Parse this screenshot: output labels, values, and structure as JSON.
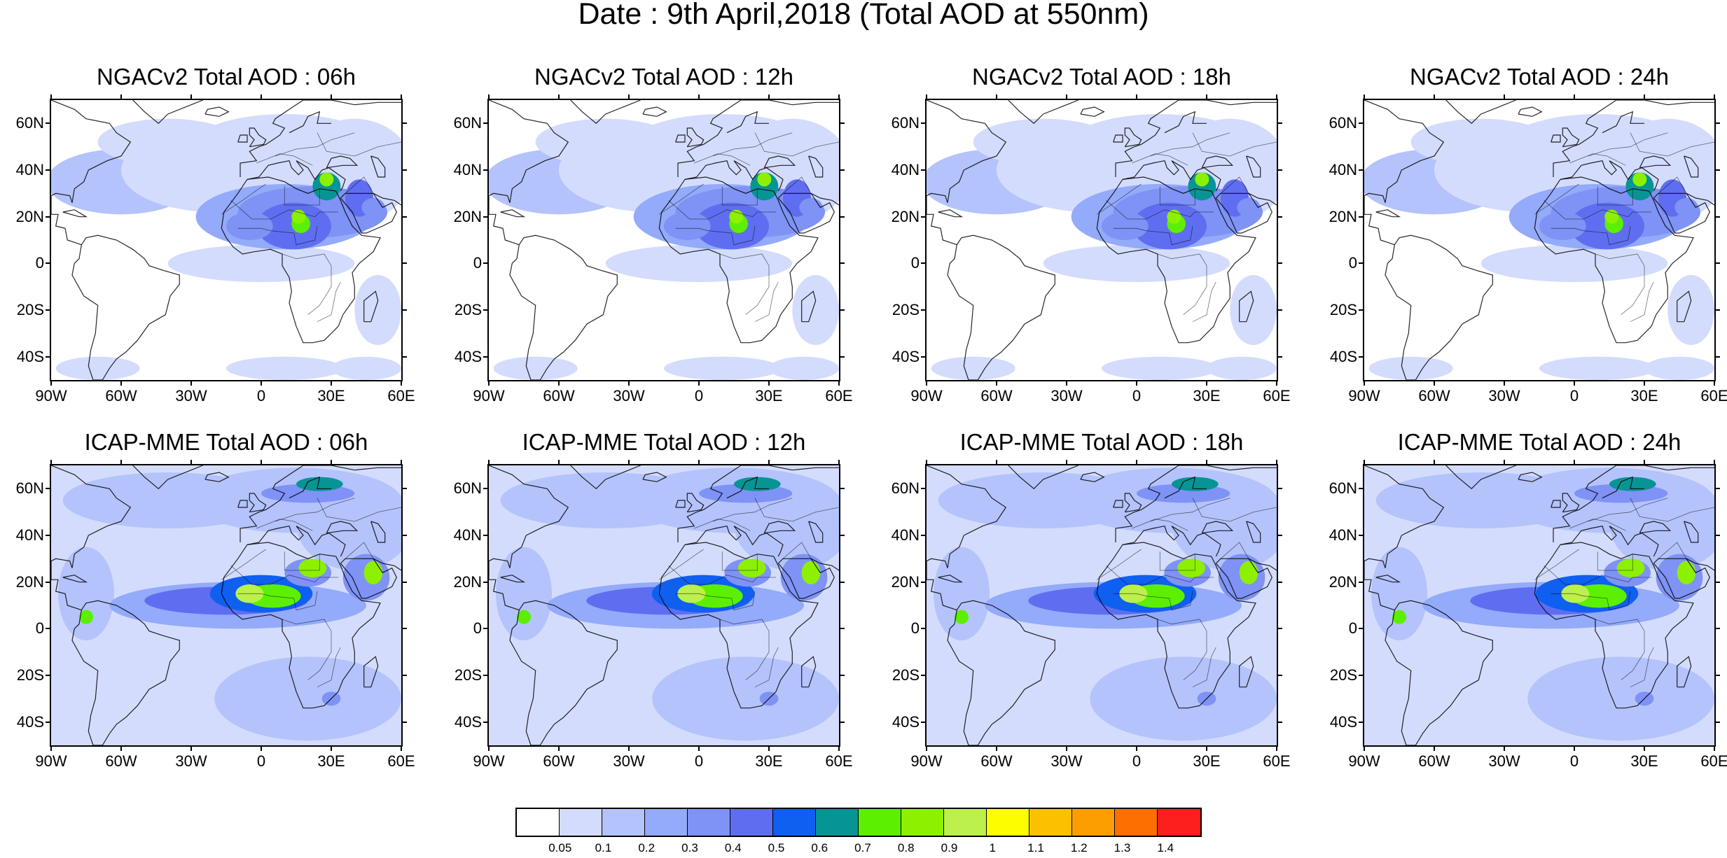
{
  "title": "Date : 9th April,2018 (Total AOD at 550nm)",
  "lat_ticks": [
    "60N",
    "40N",
    "20N",
    "0",
    "20S",
    "40S"
  ],
  "lon_ticks": [
    "90W",
    "60W",
    "30W",
    "0",
    "30E",
    "60E"
  ],
  "panels": [
    {
      "title": "NGACv2 Total AOD : 06h",
      "model": "NGACv2",
      "hour": "06h"
    },
    {
      "title": "NGACv2 Total AOD : 12h",
      "model": "NGACv2",
      "hour": "12h"
    },
    {
      "title": "NGACv2 Total AOD : 18h",
      "model": "NGACv2",
      "hour": "18h"
    },
    {
      "title": "NGACv2 Total AOD : 24h",
      "model": "NGACv2",
      "hour": "24h"
    },
    {
      "title": "ICAP-MME Total AOD : 06h",
      "model": "ICAP-MME",
      "hour": "06h"
    },
    {
      "title": "ICAP-MME Total AOD : 12h",
      "model": "ICAP-MME",
      "hour": "12h"
    },
    {
      "title": "ICAP-MME Total AOD : 18h",
      "model": "ICAP-MME",
      "hour": "18h"
    },
    {
      "title": "ICAP-MME Total AOD : 24h",
      "model": "ICAP-MME",
      "hour": "24h"
    }
  ],
  "colorbar": {
    "colors": [
      "#ffffff",
      "#d4dcfd",
      "#b4c3fb",
      "#94aafa",
      "#7f92f5",
      "#5f6ef0",
      "#0f5ff0",
      "#079494",
      "#5cf000",
      "#8cf000",
      "#bcf04c",
      "#fdfd00",
      "#fdc000",
      "#fd9e00",
      "#fd6f00",
      "#fd1e1e"
    ],
    "labels": [
      "0.05",
      "0.1",
      "0.2",
      "0.3",
      "0.4",
      "0.5",
      "0.6",
      "0.7",
      "0.8",
      "0.9",
      "1",
      "1.1",
      "1.2",
      "1.3",
      "1.4"
    ]
  }
}
